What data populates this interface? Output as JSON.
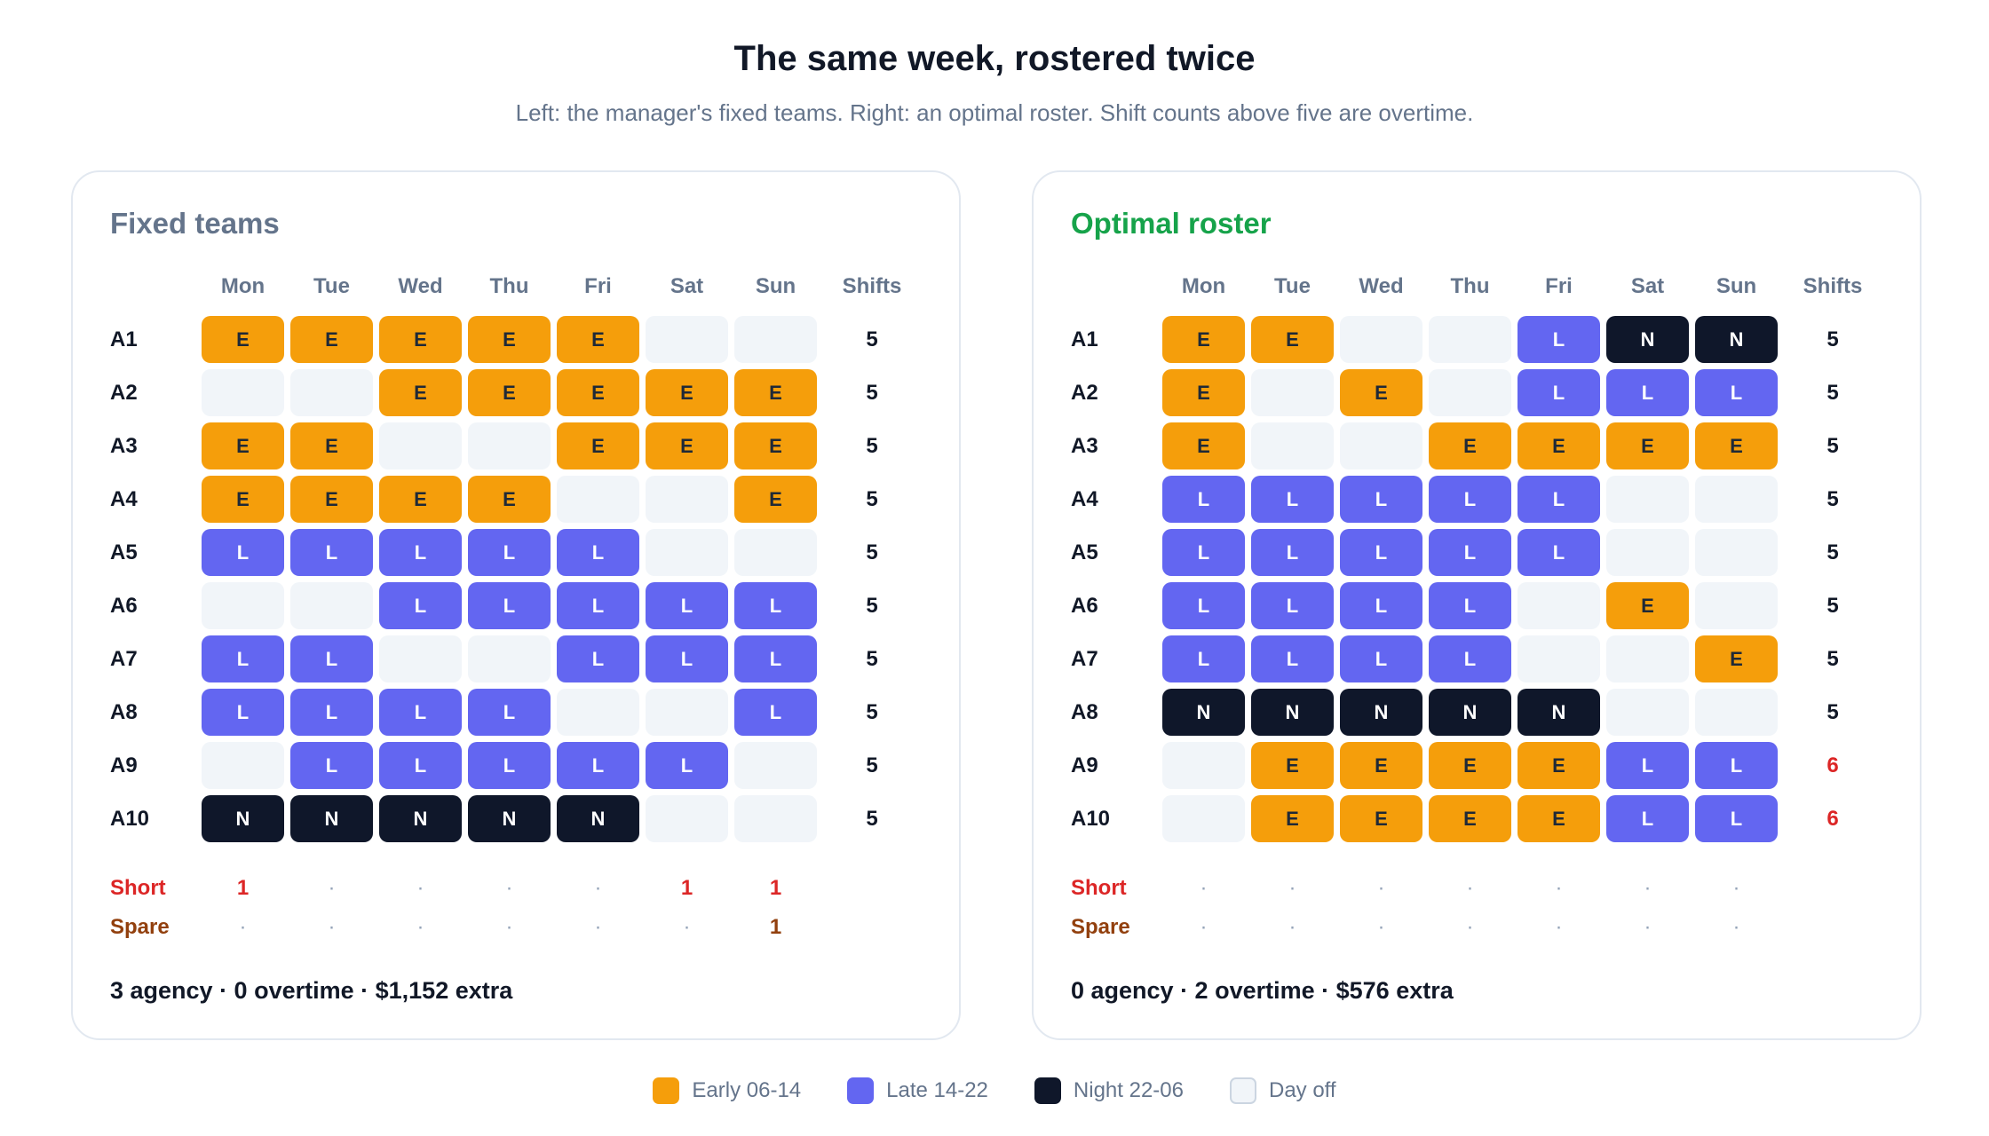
{
  "header": {
    "title": "The same week, rostered twice",
    "subtitle": "Left: the manager's fixed teams. Right: an optimal roster. Shift counts above five are overtime."
  },
  "days": [
    "Mon",
    "Tue",
    "Wed",
    "Thu",
    "Fri",
    "Sat",
    "Sun"
  ],
  "shifts_label": "Shifts",
  "short_label": "Short",
  "spare_label": "Spare",
  "colors": {
    "early": "#f59e0b",
    "late": "#6366f1",
    "night": "#0f172a",
    "off": "#f1f5f9",
    "fixed_title": "#64748b",
    "optimal_title": "#16a34a",
    "short": "#dc2626",
    "spare": "#92400e"
  },
  "panels": [
    {
      "id": "fixed",
      "title": "Fixed teams",
      "rows": [
        {
          "agent": "A1",
          "cells": [
            "E",
            "E",
            "E",
            "E",
            "E",
            "",
            ""
          ],
          "shifts": "5",
          "overtime": false
        },
        {
          "agent": "A2",
          "cells": [
            "",
            "",
            "E",
            "E",
            "E",
            "E",
            "E"
          ],
          "shifts": "5",
          "overtime": false
        },
        {
          "agent": "A3",
          "cells": [
            "E",
            "E",
            "",
            "",
            "E",
            "E",
            "E"
          ],
          "shifts": "5",
          "overtime": false
        },
        {
          "agent": "A4",
          "cells": [
            "E",
            "E",
            "E",
            "E",
            "",
            "",
            "E"
          ],
          "shifts": "5",
          "overtime": false
        },
        {
          "agent": "A5",
          "cells": [
            "L",
            "L",
            "L",
            "L",
            "L",
            "",
            ""
          ],
          "shifts": "5",
          "overtime": false
        },
        {
          "agent": "A6",
          "cells": [
            "",
            "",
            "L",
            "L",
            "L",
            "L",
            "L"
          ],
          "shifts": "5",
          "overtime": false
        },
        {
          "agent": "A7",
          "cells": [
            "L",
            "L",
            "",
            "",
            "L",
            "L",
            "L"
          ],
          "shifts": "5",
          "overtime": false
        },
        {
          "agent": "A8",
          "cells": [
            "L",
            "L",
            "L",
            "L",
            "",
            "",
            "L"
          ],
          "shifts": "5",
          "overtime": false
        },
        {
          "agent": "A9",
          "cells": [
            "",
            "L",
            "L",
            "L",
            "L",
            "L",
            ""
          ],
          "shifts": "5",
          "overtime": false
        },
        {
          "agent": "A10",
          "cells": [
            "N",
            "N",
            "N",
            "N",
            "N",
            "",
            ""
          ],
          "shifts": "5",
          "overtime": false
        }
      ],
      "short": [
        "1",
        "·",
        "·",
        "·",
        "·",
        "1",
        "1"
      ],
      "spare": [
        "·",
        "·",
        "·",
        "·",
        "·",
        "·",
        "1"
      ],
      "summary": "3 agency · 0 overtime · $1,152 extra"
    },
    {
      "id": "optimal",
      "title": "Optimal roster",
      "rows": [
        {
          "agent": "A1",
          "cells": [
            "E",
            "E",
            "",
            "",
            "L",
            "N",
            "N"
          ],
          "shifts": "5",
          "overtime": false
        },
        {
          "agent": "A2",
          "cells": [
            "E",
            "",
            "E",
            "",
            "L",
            "L",
            "L"
          ],
          "shifts": "5",
          "overtime": false
        },
        {
          "agent": "A3",
          "cells": [
            "E",
            "",
            "",
            "E",
            "E",
            "E",
            "E"
          ],
          "shifts": "5",
          "overtime": false
        },
        {
          "agent": "A4",
          "cells": [
            "L",
            "L",
            "L",
            "L",
            "L",
            "",
            ""
          ],
          "shifts": "5",
          "overtime": false
        },
        {
          "agent": "A5",
          "cells": [
            "L",
            "L",
            "L",
            "L",
            "L",
            "",
            ""
          ],
          "shifts": "5",
          "overtime": false
        },
        {
          "agent": "A6",
          "cells": [
            "L",
            "L",
            "L",
            "L",
            "",
            "E",
            ""
          ],
          "shifts": "5",
          "overtime": false
        },
        {
          "agent": "A7",
          "cells": [
            "L",
            "L",
            "L",
            "L",
            "",
            "",
            "E"
          ],
          "shifts": "5",
          "overtime": false
        },
        {
          "agent": "A8",
          "cells": [
            "N",
            "N",
            "N",
            "N",
            "N",
            "",
            ""
          ],
          "shifts": "5",
          "overtime": false
        },
        {
          "agent": "A9",
          "cells": [
            "",
            "E",
            "E",
            "E",
            "E",
            "L",
            "L"
          ],
          "shifts": "6",
          "overtime": true
        },
        {
          "agent": "A10",
          "cells": [
            "",
            "E",
            "E",
            "E",
            "E",
            "L",
            "L"
          ],
          "shifts": "6",
          "overtime": true
        }
      ],
      "short": [
        "·",
        "·",
        "·",
        "·",
        "·",
        "·",
        "·"
      ],
      "spare": [
        "·",
        "·",
        "·",
        "·",
        "·",
        "·",
        "·"
      ],
      "summary": "0 agency · 2 overtime · $576 extra"
    }
  ],
  "legend": [
    {
      "key": "E",
      "label": "Early 06-14",
      "name": "legend-early"
    },
    {
      "key": "L",
      "label": "Late 14-22",
      "name": "legend-late"
    },
    {
      "key": "N",
      "label": "Night 22-06",
      "name": "legend-night"
    },
    {
      "key": "O",
      "label": "Day off",
      "name": "legend-day-off"
    }
  ]
}
